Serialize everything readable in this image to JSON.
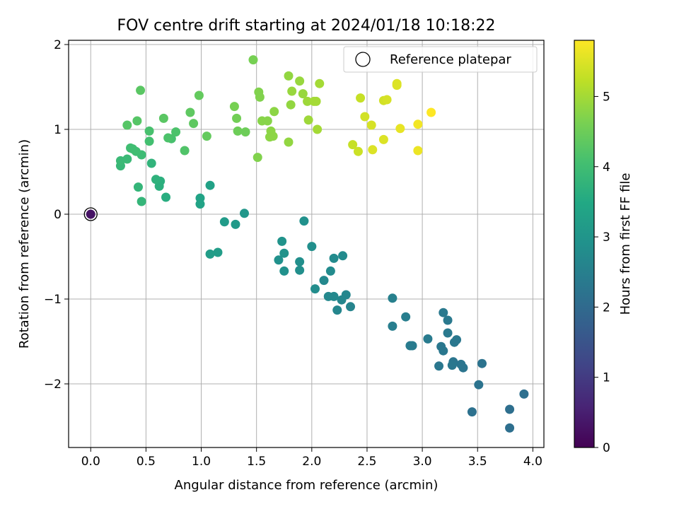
{
  "chart_data": {
    "type": "scatter",
    "title": "FOV centre drift starting at 2024/01/18 10:18:22",
    "xlabel": "Angular distance from reference (arcmin)",
    "ylabel": "Rotation from reference (arcmin)",
    "xlim": [
      -0.2,
      4.1
    ],
    "ylim": [
      -2.75,
      2.05
    ],
    "xticks": [
      0.0,
      0.5,
      1.0,
      1.5,
      2.0,
      2.5,
      3.0,
      3.5,
      4.0
    ],
    "xtick_labels": [
      "0.0",
      "0.5",
      "1.0",
      "1.5",
      "2.0",
      "2.5",
      "3.0",
      "3.5",
      "4.0"
    ],
    "yticks": [
      -2,
      -1,
      0,
      1,
      2
    ],
    "ytick_labels": [
      "−2",
      "−1",
      "0",
      "1",
      "2"
    ],
    "grid": true,
    "legend": {
      "position": "top-right",
      "entries": [
        "Reference platepar"
      ]
    },
    "colorbar": {
      "label": "Hours from first FF file",
      "colormap": "viridis",
      "range": [
        0,
        5.8
      ],
      "ticks": [
        0,
        1,
        2,
        3,
        4,
        5
      ],
      "tick_labels": [
        "0",
        "1",
        "2",
        "3",
        "4",
        "5"
      ]
    },
    "reference_point": {
      "x": 0.0,
      "y": 0.0
    },
    "points": [
      {
        "x": 0.0,
        "y": 0.0,
        "h": 0.3
      },
      {
        "x": 3.79,
        "y": -2.52,
        "h": 2.1
      },
      {
        "x": 3.79,
        "y": -2.3,
        "h": 2.1
      },
      {
        "x": 3.92,
        "y": -2.12,
        "h": 2.1
      },
      {
        "x": 3.45,
        "y": -2.33,
        "h": 2.15
      },
      {
        "x": 3.51,
        "y": -2.01,
        "h": 2.2
      },
      {
        "x": 3.54,
        "y": -1.76,
        "h": 2.2
      },
      {
        "x": 3.37,
        "y": -1.81,
        "h": 2.25
      },
      {
        "x": 3.35,
        "y": -1.77,
        "h": 2.25
      },
      {
        "x": 3.28,
        "y": -1.74,
        "h": 2.25
      },
      {
        "x": 3.27,
        "y": -1.78,
        "h": 2.3
      },
      {
        "x": 3.15,
        "y": -1.79,
        "h": 2.3
      },
      {
        "x": 3.19,
        "y": -1.61,
        "h": 2.3
      },
      {
        "x": 3.17,
        "y": -1.56,
        "h": 2.3
      },
      {
        "x": 3.29,
        "y": -1.51,
        "h": 2.3
      },
      {
        "x": 3.31,
        "y": -1.48,
        "h": 2.3
      },
      {
        "x": 3.23,
        "y": -1.4,
        "h": 2.35
      },
      {
        "x": 3.23,
        "y": -1.25,
        "h": 2.35
      },
      {
        "x": 3.19,
        "y": -1.16,
        "h": 2.35
      },
      {
        "x": 3.05,
        "y": -1.47,
        "h": 2.4
      },
      {
        "x": 2.91,
        "y": -1.55,
        "h": 2.4
      },
      {
        "x": 2.89,
        "y": -1.55,
        "h": 2.4
      },
      {
        "x": 2.85,
        "y": -1.21,
        "h": 2.45
      },
      {
        "x": 2.73,
        "y": -1.32,
        "h": 2.45
      },
      {
        "x": 2.73,
        "y": -0.99,
        "h": 2.5
      },
      {
        "x": 2.35,
        "y": -1.09,
        "h": 2.6
      },
      {
        "x": 2.31,
        "y": -0.95,
        "h": 2.65
      },
      {
        "x": 2.27,
        "y": -1.01,
        "h": 2.65
      },
      {
        "x": 2.23,
        "y": -1.13,
        "h": 2.65
      },
      {
        "x": 2.2,
        "y": -0.97,
        "h": 2.7
      },
      {
        "x": 2.15,
        "y": -0.97,
        "h": 2.7
      },
      {
        "x": 2.11,
        "y": -0.78,
        "h": 2.7
      },
      {
        "x": 2.17,
        "y": -0.67,
        "h": 2.75
      },
      {
        "x": 2.2,
        "y": -0.52,
        "h": 2.75
      },
      {
        "x": 2.28,
        "y": -0.49,
        "h": 2.75
      },
      {
        "x": 2.03,
        "y": -0.88,
        "h": 2.8
      },
      {
        "x": 2.0,
        "y": -0.38,
        "h": 2.85
      },
      {
        "x": 1.89,
        "y": -0.56,
        "h": 2.85
      },
      {
        "x": 1.89,
        "y": -0.66,
        "h": 2.85
      },
      {
        "x": 1.93,
        "y": -0.08,
        "h": 2.9
      },
      {
        "x": 1.75,
        "y": -0.67,
        "h": 2.9
      },
      {
        "x": 1.7,
        "y": -0.54,
        "h": 2.9
      },
      {
        "x": 1.75,
        "y": -0.46,
        "h": 2.95
      },
      {
        "x": 1.73,
        "y": -0.32,
        "h": 2.95
      },
      {
        "x": 1.39,
        "y": 0.01,
        "h": 3.05
      },
      {
        "x": 1.31,
        "y": -0.12,
        "h": 3.1
      },
      {
        "x": 1.21,
        "y": -0.09,
        "h": 3.15
      },
      {
        "x": 1.15,
        "y": -0.45,
        "h": 3.2
      },
      {
        "x": 1.08,
        "y": -0.47,
        "h": 3.2
      },
      {
        "x": 1.08,
        "y": 0.34,
        "h": 3.3
      },
      {
        "x": 0.99,
        "y": 0.19,
        "h": 3.35
      },
      {
        "x": 0.99,
        "y": 0.12,
        "h": 3.35
      },
      {
        "x": 0.68,
        "y": 0.2,
        "h": 3.6
      },
      {
        "x": 0.63,
        "y": 0.39,
        "h": 3.65
      },
      {
        "x": 0.62,
        "y": 0.33,
        "h": 3.65
      },
      {
        "x": 0.59,
        "y": 0.41,
        "h": 3.7
      },
      {
        "x": 0.55,
        "y": 0.6,
        "h": 3.75
      },
      {
        "x": 0.46,
        "y": 0.15,
        "h": 3.8
      },
      {
        "x": 0.43,
        "y": 0.32,
        "h": 3.8
      },
      {
        "x": 0.27,
        "y": 0.57,
        "h": 3.85
      },
      {
        "x": 0.27,
        "y": 0.63,
        "h": 3.9
      },
      {
        "x": 0.33,
        "y": 0.65,
        "h": 3.9
      },
      {
        "x": 0.46,
        "y": 0.7,
        "h": 3.95
      },
      {
        "x": 0.41,
        "y": 0.74,
        "h": 4.0
      },
      {
        "x": 0.36,
        "y": 0.78,
        "h": 4.0
      },
      {
        "x": 0.38,
        "y": 0.77,
        "h": 4.0
      },
      {
        "x": 0.53,
        "y": 0.86,
        "h": 4.05
      },
      {
        "x": 0.53,
        "y": 0.98,
        "h": 4.1
      },
      {
        "x": 0.73,
        "y": 0.89,
        "h": 4.1
      },
      {
        "x": 0.7,
        "y": 0.9,
        "h": 4.15
      },
      {
        "x": 0.77,
        "y": 0.97,
        "h": 4.15
      },
      {
        "x": 0.85,
        "y": 0.75,
        "h": 4.2
      },
      {
        "x": 0.33,
        "y": 1.05,
        "h": 4.25
      },
      {
        "x": 0.42,
        "y": 1.1,
        "h": 4.25
      },
      {
        "x": 0.66,
        "y": 1.13,
        "h": 4.3
      },
      {
        "x": 0.9,
        "y": 1.2,
        "h": 4.35
      },
      {
        "x": 0.93,
        "y": 1.07,
        "h": 4.35
      },
      {
        "x": 1.05,
        "y": 0.92,
        "h": 4.4
      },
      {
        "x": 0.98,
        "y": 1.4,
        "h": 4.4
      },
      {
        "x": 0.45,
        "y": 1.46,
        "h": 4.3
      },
      {
        "x": 1.33,
        "y": 0.98,
        "h": 4.5
      },
      {
        "x": 1.4,
        "y": 0.97,
        "h": 4.5
      },
      {
        "x": 1.32,
        "y": 1.13,
        "h": 4.55
      },
      {
        "x": 1.3,
        "y": 1.27,
        "h": 4.6
      },
      {
        "x": 1.51,
        "y": 0.67,
        "h": 4.7
      },
      {
        "x": 1.47,
        "y": 1.82,
        "h": 4.6
      },
      {
        "x": 1.52,
        "y": 1.44,
        "h": 4.7
      },
      {
        "x": 1.53,
        "y": 1.38,
        "h": 4.7
      },
      {
        "x": 1.55,
        "y": 1.1,
        "h": 4.75
      },
      {
        "x": 1.6,
        "y": 1.1,
        "h": 4.75
      },
      {
        "x": 1.63,
        "y": 0.98,
        "h": 4.8
      },
      {
        "x": 1.62,
        "y": 0.91,
        "h": 4.8
      },
      {
        "x": 1.65,
        "y": 0.92,
        "h": 4.8
      },
      {
        "x": 1.66,
        "y": 1.21,
        "h": 4.8
      },
      {
        "x": 1.79,
        "y": 0.85,
        "h": 4.85
      },
      {
        "x": 1.81,
        "y": 1.29,
        "h": 4.85
      },
      {
        "x": 1.79,
        "y": 1.63,
        "h": 4.85
      },
      {
        "x": 1.82,
        "y": 1.45,
        "h": 4.9
      },
      {
        "x": 1.89,
        "y": 1.57,
        "h": 4.9
      },
      {
        "x": 1.92,
        "y": 1.42,
        "h": 4.9
      },
      {
        "x": 1.96,
        "y": 1.33,
        "h": 4.95
      },
      {
        "x": 1.97,
        "y": 1.11,
        "h": 4.95
      },
      {
        "x": 2.02,
        "y": 1.33,
        "h": 5.0
      },
      {
        "x": 2.04,
        "y": 1.33,
        "h": 5.0
      },
      {
        "x": 2.05,
        "y": 1.0,
        "h": 5.0
      },
      {
        "x": 2.07,
        "y": 1.54,
        "h": 5.0
      },
      {
        "x": 2.37,
        "y": 0.82,
        "h": 5.3
      },
      {
        "x": 2.42,
        "y": 0.74,
        "h": 5.35
      },
      {
        "x": 2.44,
        "y": 1.37,
        "h": 5.3
      },
      {
        "x": 2.48,
        "y": 1.15,
        "h": 5.4
      },
      {
        "x": 2.54,
        "y": 1.05,
        "h": 5.45
      },
      {
        "x": 2.55,
        "y": 0.76,
        "h": 5.5
      },
      {
        "x": 2.65,
        "y": 0.88,
        "h": 5.5
      },
      {
        "x": 2.65,
        "y": 1.34,
        "h": 5.4
      },
      {
        "x": 2.68,
        "y": 1.35,
        "h": 5.45
      },
      {
        "x": 2.77,
        "y": 1.52,
        "h": 5.5
      },
      {
        "x": 2.77,
        "y": 1.54,
        "h": 5.5
      },
      {
        "x": 2.8,
        "y": 1.01,
        "h": 5.6
      },
      {
        "x": 2.96,
        "y": 0.75,
        "h": 5.65
      },
      {
        "x": 2.96,
        "y": 1.06,
        "h": 5.7
      },
      {
        "x": 3.08,
        "y": 1.2,
        "h": 5.8
      }
    ]
  }
}
